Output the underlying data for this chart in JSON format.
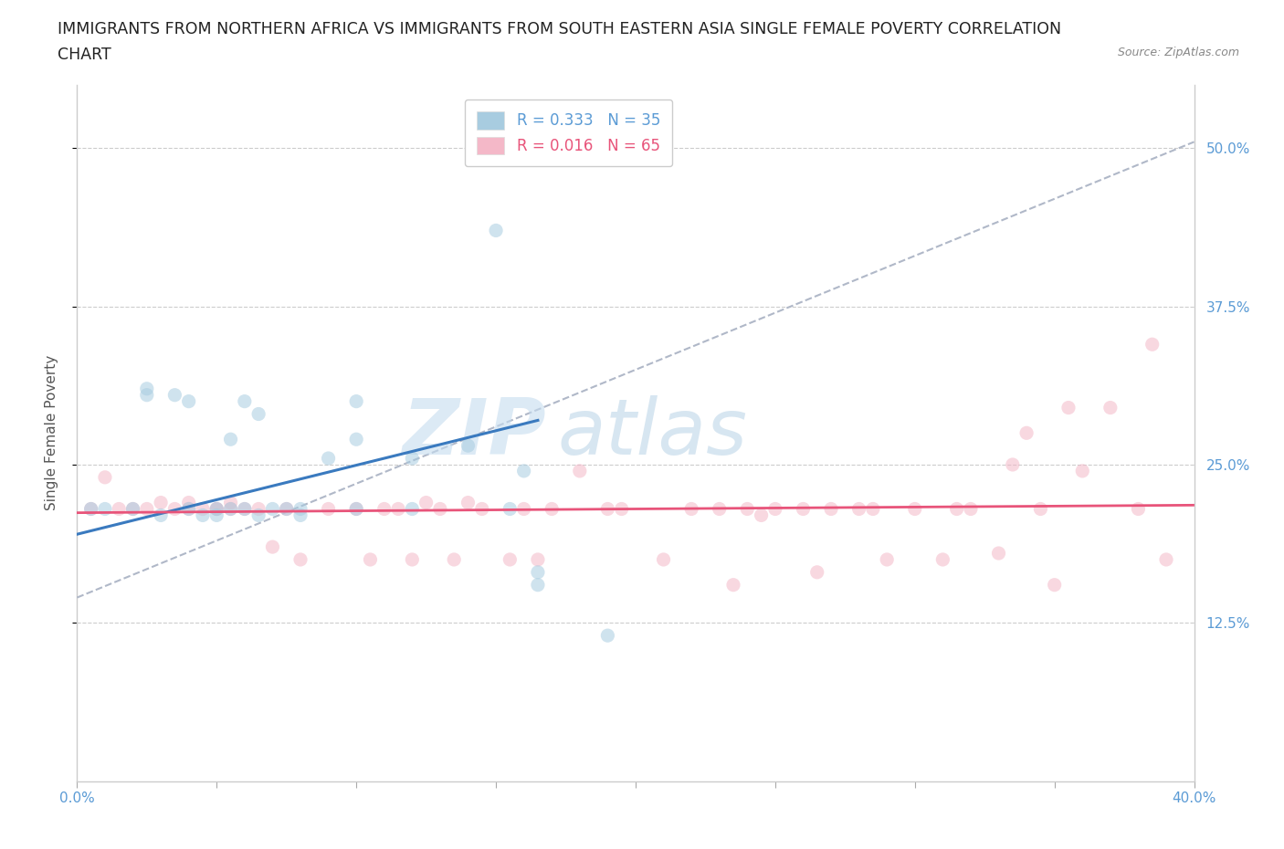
{
  "title_line1": "IMMIGRANTS FROM NORTHERN AFRICA VS IMMIGRANTS FROM SOUTH EASTERN ASIA SINGLE FEMALE POVERTY CORRELATION",
  "title_line2": "CHART",
  "source": "Source: ZipAtlas.com",
  "ylabel": "Single Female Poverty",
  "xlim": [
    0.0,
    0.4
  ],
  "ylim": [
    0.0,
    0.55
  ],
  "yticks": [
    0.125,
    0.25,
    0.375,
    0.5
  ],
  "ytick_labels": [
    "12.5%",
    "25.0%",
    "37.5%",
    "50.0%"
  ],
  "xticks": [
    0.0,
    0.05,
    0.1,
    0.15,
    0.2,
    0.25,
    0.3,
    0.35,
    0.4
  ],
  "xtick_labels": [
    "0.0%",
    "",
    "",
    "",
    "",
    "",
    "",
    "",
    "40.0%"
  ],
  "legend_R1": "R = 0.333",
  "legend_N1": "N = 35",
  "legend_R2": "R = 0.016",
  "legend_N2": "N = 65",
  "color_blue": "#a8cce0",
  "color_pink": "#f4b8c8",
  "color_blue_line": "#3a7abf",
  "color_pink_line": "#e8547a",
  "color_gray_line": "#b0b8c8",
  "watermark_text": "ZIP",
  "watermark_text2": "atlas",
  "blue_scatter_x": [
    0.005,
    0.01,
    0.02,
    0.025,
    0.025,
    0.03,
    0.035,
    0.04,
    0.04,
    0.045,
    0.05,
    0.05,
    0.055,
    0.055,
    0.06,
    0.06,
    0.065,
    0.065,
    0.07,
    0.075,
    0.08,
    0.08,
    0.09,
    0.1,
    0.1,
    0.1,
    0.12,
    0.12,
    0.14,
    0.15,
    0.155,
    0.16,
    0.165,
    0.165,
    0.19
  ],
  "blue_scatter_y": [
    0.215,
    0.215,
    0.215,
    0.305,
    0.31,
    0.21,
    0.305,
    0.3,
    0.215,
    0.21,
    0.215,
    0.21,
    0.27,
    0.215,
    0.3,
    0.215,
    0.29,
    0.21,
    0.215,
    0.215,
    0.21,
    0.215,
    0.255,
    0.215,
    0.27,
    0.3,
    0.255,
    0.215,
    0.265,
    0.435,
    0.215,
    0.245,
    0.165,
    0.155,
    0.115
  ],
  "pink_scatter_x": [
    0.005,
    0.01,
    0.015,
    0.02,
    0.025,
    0.03,
    0.035,
    0.04,
    0.04,
    0.045,
    0.05,
    0.05,
    0.055,
    0.055,
    0.06,
    0.065,
    0.07,
    0.075,
    0.08,
    0.09,
    0.1,
    0.105,
    0.11,
    0.115,
    0.12,
    0.125,
    0.13,
    0.135,
    0.14,
    0.145,
    0.155,
    0.16,
    0.165,
    0.17,
    0.18,
    0.19,
    0.195,
    0.21,
    0.22,
    0.23,
    0.235,
    0.24,
    0.245,
    0.25,
    0.26,
    0.265,
    0.27,
    0.28,
    0.285,
    0.29,
    0.3,
    0.31,
    0.315,
    0.32,
    0.33,
    0.335,
    0.34,
    0.345,
    0.35,
    0.355,
    0.36,
    0.37,
    0.38,
    0.385,
    0.39
  ],
  "pink_scatter_y": [
    0.215,
    0.24,
    0.215,
    0.215,
    0.215,
    0.22,
    0.215,
    0.22,
    0.215,
    0.215,
    0.215,
    0.215,
    0.215,
    0.22,
    0.215,
    0.215,
    0.185,
    0.215,
    0.175,
    0.215,
    0.215,
    0.175,
    0.215,
    0.215,
    0.175,
    0.22,
    0.215,
    0.175,
    0.22,
    0.215,
    0.175,
    0.215,
    0.175,
    0.215,
    0.245,
    0.215,
    0.215,
    0.175,
    0.215,
    0.215,
    0.155,
    0.215,
    0.21,
    0.215,
    0.215,
    0.165,
    0.215,
    0.215,
    0.215,
    0.175,
    0.215,
    0.175,
    0.215,
    0.215,
    0.18,
    0.25,
    0.275,
    0.215,
    0.155,
    0.295,
    0.245,
    0.295,
    0.215,
    0.345,
    0.175
  ],
  "blue_line_x": [
    0.0,
    0.165
  ],
  "blue_line_y": [
    0.195,
    0.285
  ],
  "gray_line_x": [
    0.0,
    0.4
  ],
  "gray_line_y": [
    0.145,
    0.505
  ],
  "pink_line_x": [
    0.0,
    0.4
  ],
  "pink_line_y": [
    0.212,
    0.218
  ],
  "background_color": "#ffffff",
  "grid_color": "#cccccc",
  "title_fontsize": 12.5,
  "axis_label_fontsize": 11,
  "tick_fontsize": 11,
  "legend_fontsize": 12,
  "scatter_size": 120,
  "scatter_alpha": 0.55
}
